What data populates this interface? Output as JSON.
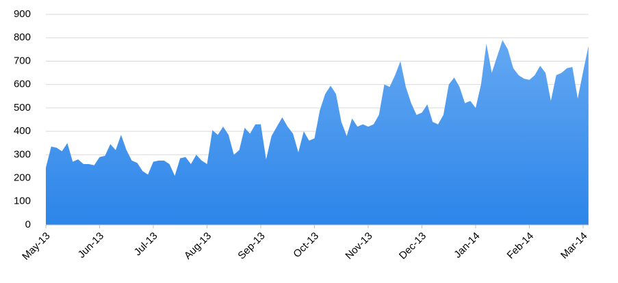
{
  "chart_data": {
    "type": "area",
    "color": "#3b8fef",
    "categories": [
      "May-13",
      null,
      null,
      null,
      null,
      null,
      null,
      null,
      null,
      null,
      "Jun-13",
      null,
      null,
      null,
      null,
      null,
      null,
      null,
      null,
      null,
      "Jul-13",
      null,
      null,
      null,
      null,
      null,
      null,
      null,
      null,
      null,
      "Aug-13",
      null,
      null,
      null,
      null,
      null,
      null,
      null,
      null,
      null,
      "Sep-13",
      null,
      null,
      null,
      null,
      null,
      null,
      null,
      null,
      null,
      "Oct-13",
      null,
      null,
      null,
      null,
      null,
      null,
      null,
      null,
      null,
      "Nov-13",
      null,
      null,
      null,
      null,
      null,
      null,
      null,
      null,
      null,
      "Dec-13",
      null,
      null,
      null,
      null,
      null,
      null,
      null,
      null,
      null,
      "Jan-14",
      null,
      null,
      null,
      null,
      null,
      null,
      null,
      null,
      null,
      "Feb-14",
      null,
      null,
      null,
      null,
      null,
      null,
      null,
      null,
      null,
      "Mar-14",
      null
    ],
    "values": [
      245,
      335,
      330,
      315,
      350,
      270,
      280,
      260,
      260,
      255,
      290,
      295,
      345,
      320,
      385,
      320,
      275,
      265,
      230,
      215,
      270,
      275,
      275,
      260,
      210,
      285,
      290,
      260,
      300,
      275,
      260,
      405,
      385,
      420,
      385,
      300,
      320,
      415,
      390,
      430,
      430,
      280,
      380,
      420,
      460,
      420,
      390,
      310,
      400,
      360,
      370,
      490,
      560,
      595,
      560,
      440,
      380,
      455,
      420,
      430,
      420,
      430,
      470,
      600,
      590,
      640,
      700,
      590,
      520,
      470,
      480,
      515,
      440,
      430,
      470,
      600,
      630,
      590,
      520,
      530,
      500,
      600,
      775,
      650,
      720,
      790,
      750,
      670,
      640,
      625,
      620,
      640,
      680,
      650,
      530,
      640,
      650,
      670,
      675,
      540,
      655,
      765
    ],
    "ylim": [
      0,
      900
    ],
    "yticks": [
      0,
      100,
      200,
      300,
      400,
      500,
      600,
      700,
      800,
      900
    ],
    "grid": true
  }
}
